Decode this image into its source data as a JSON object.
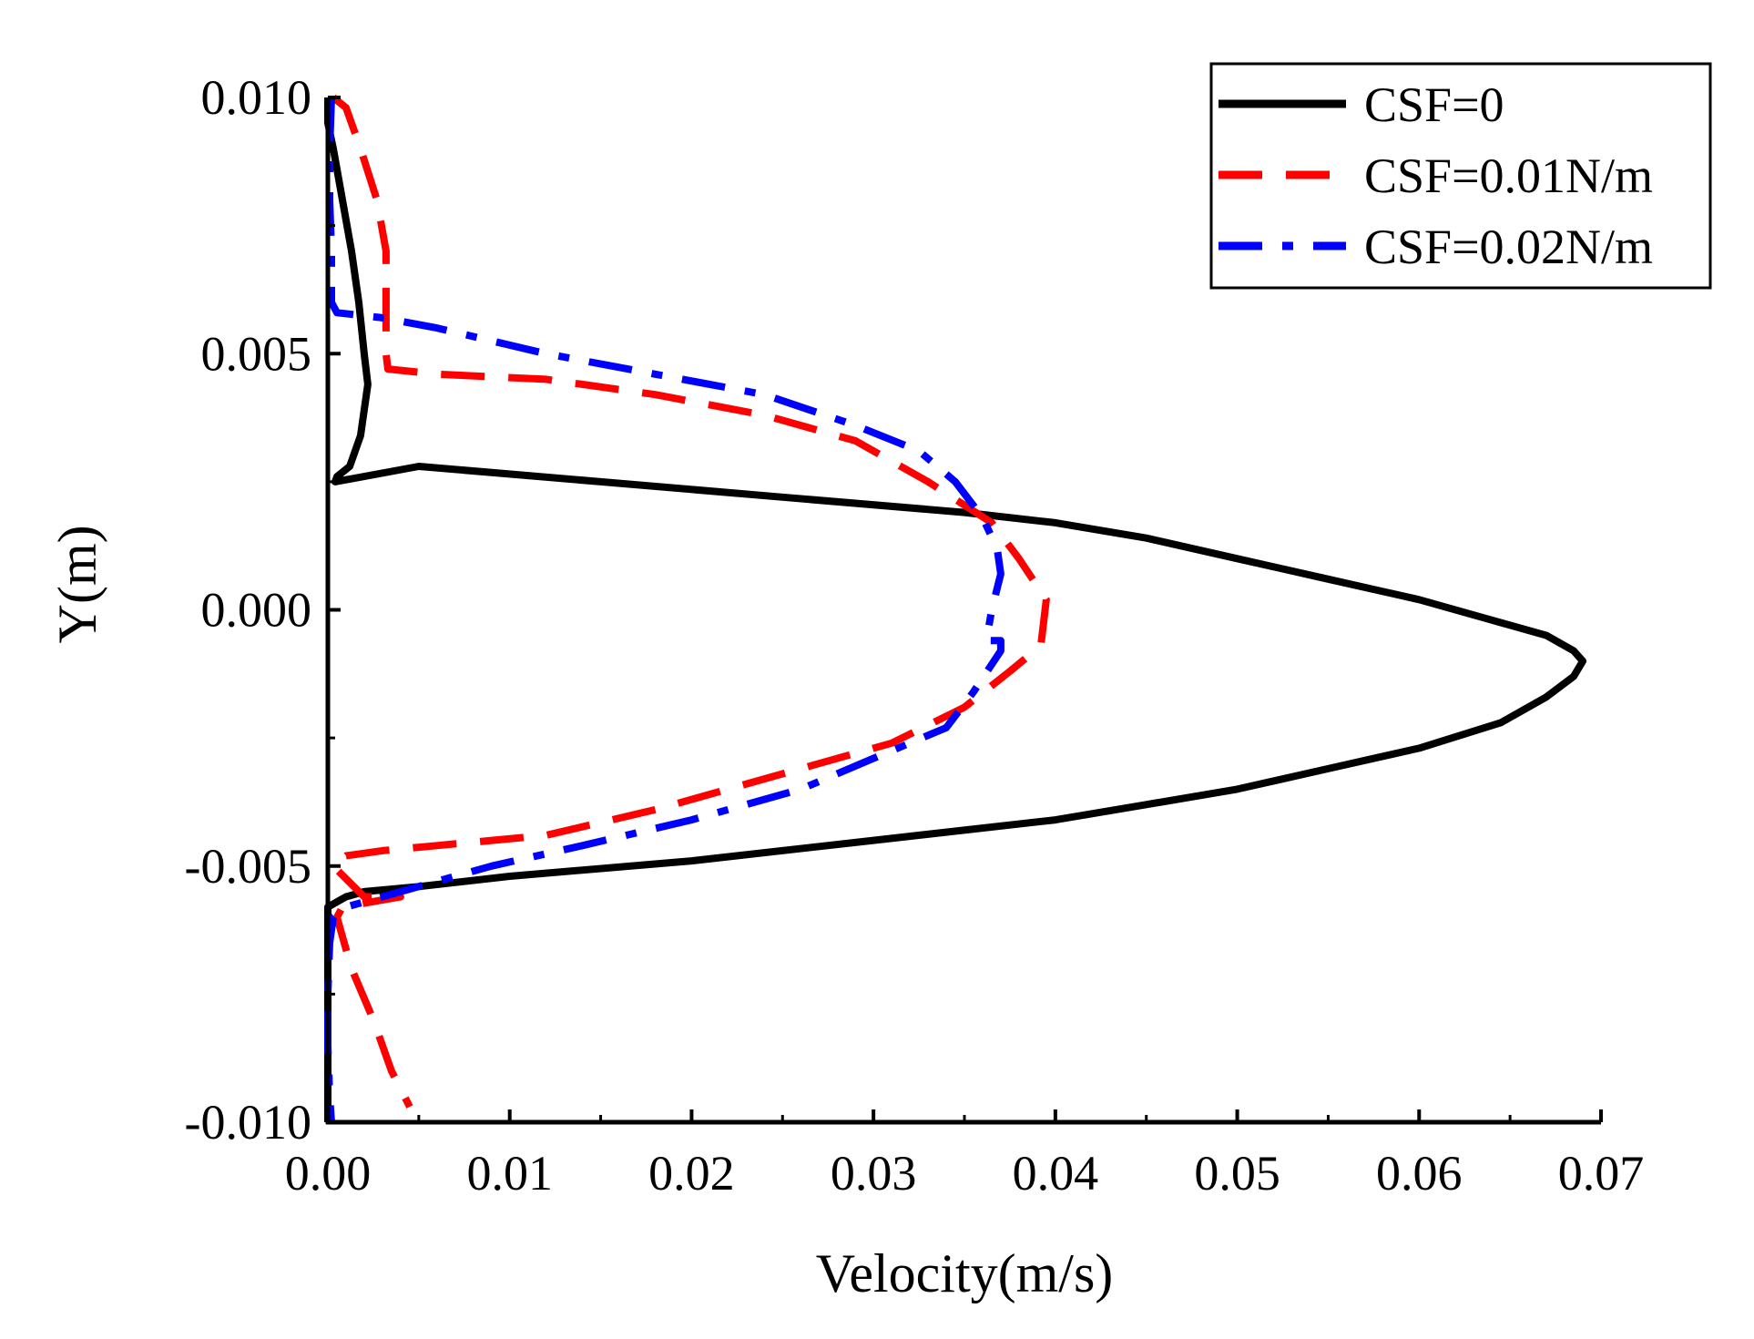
{
  "chart_data": {
    "type": "line",
    "xlabel": "Velocity(m/s)",
    "ylabel": "Y(m)",
    "xlim": [
      0,
      0.07
    ],
    "ylim": [
      -0.01,
      0.01
    ],
    "xticks": [
      "0.00",
      "0.01",
      "0.02",
      "0.03",
      "0.04",
      "0.05",
      "0.06",
      "0.07"
    ],
    "yticks": [
      "-0.010",
      "-0.005",
      "0.000",
      "0.005",
      "0.010"
    ],
    "legend_position": "top-right",
    "grid": false,
    "series": [
      {
        "name": "CSF=0",
        "color": "#000000",
        "style": "solid",
        "points": [
          [
            0.0,
            0.01
          ],
          [
            0.0,
            0.0095
          ],
          [
            0.0003,
            0.009
          ],
          [
            0.0008,
            0.008
          ],
          [
            0.0013,
            0.007
          ],
          [
            0.0017,
            0.006
          ],
          [
            0.002,
            0.005
          ],
          [
            0.0022,
            0.0044
          ],
          [
            0.0018,
            0.0034
          ],
          [
            0.0012,
            0.0028
          ],
          [
            0.0005,
            0.0026
          ],
          [
            0.0004,
            0.0025
          ],
          [
            0.005,
            0.0028
          ],
          [
            0.015,
            0.0025
          ],
          [
            0.025,
            0.0022
          ],
          [
            0.035,
            0.0019
          ],
          [
            0.04,
            0.0017
          ],
          [
            0.045,
            0.0014
          ],
          [
            0.05,
            0.001
          ],
          [
            0.055,
            0.0006
          ],
          [
            0.06,
            0.0002
          ],
          [
            0.064,
            -0.0002
          ],
          [
            0.067,
            -0.0005
          ],
          [
            0.0685,
            -0.0008
          ],
          [
            0.069,
            -0.001
          ],
          [
            0.0685,
            -0.0013
          ],
          [
            0.067,
            -0.0017
          ],
          [
            0.0645,
            -0.0022
          ],
          [
            0.06,
            -0.0027
          ],
          [
            0.055,
            -0.0031
          ],
          [
            0.05,
            -0.0035
          ],
          [
            0.045,
            -0.0038
          ],
          [
            0.04,
            -0.0041
          ],
          [
            0.03,
            -0.0045
          ],
          [
            0.02,
            -0.0049
          ],
          [
            0.01,
            -0.0052
          ],
          [
            0.005,
            -0.0054
          ],
          [
            0.002,
            -0.0055
          ],
          [
            0.001,
            -0.0056
          ],
          [
            0.0005,
            -0.0057
          ],
          [
            0.0,
            -0.0058
          ],
          [
            0.0,
            -0.0065
          ],
          [
            0.0,
            -0.0075
          ],
          [
            0.0,
            -0.0085
          ],
          [
            0.0,
            -0.0095
          ],
          [
            0.0,
            -0.01
          ]
        ]
      },
      {
        "name": "CSF=0.01N/m",
        "color": "#ff0000",
        "style": "dashed",
        "points": [
          [
            0.0003,
            0.01
          ],
          [
            0.001,
            0.0098
          ],
          [
            0.0018,
            0.009
          ],
          [
            0.0027,
            0.008
          ],
          [
            0.0032,
            0.007
          ],
          [
            0.0032,
            0.006
          ],
          [
            0.0032,
            0.005
          ],
          [
            0.0033,
            0.0047
          ],
          [
            0.006,
            0.0046
          ],
          [
            0.012,
            0.0045
          ],
          [
            0.018,
            0.0042
          ],
          [
            0.024,
            0.0038
          ],
          [
            0.029,
            0.0033
          ],
          [
            0.033,
            0.0025
          ],
          [
            0.0365,
            0.0017
          ],
          [
            0.038,
            0.001
          ],
          [
            0.0395,
            0.0002
          ],
          [
            0.0392,
            -0.0007
          ],
          [
            0.0375,
            -0.0012
          ],
          [
            0.035,
            -0.0019
          ],
          [
            0.031,
            -0.0026
          ],
          [
            0.025,
            -0.0032
          ],
          [
            0.018,
            -0.0039
          ],
          [
            0.012,
            -0.0044
          ],
          [
            0.006,
            -0.0046
          ],
          [
            0.003,
            -0.0047
          ],
          [
            0.001,
            -0.0048
          ],
          [
            0.0003,
            -0.005
          ],
          [
            0.002,
            -0.0056
          ],
          [
            0.004,
            -0.0056
          ],
          [
            0.0008,
            -0.0058
          ],
          [
            0.0005,
            -0.006
          ],
          [
            0.0013,
            -0.007
          ],
          [
            0.0025,
            -0.008
          ],
          [
            0.0035,
            -0.009
          ],
          [
            0.0045,
            -0.0097
          ]
        ]
      },
      {
        "name": "CSF=0.02N/m",
        "color": "#0000ff",
        "style": "dashdot",
        "points": [
          [
            0.0002,
            0.01
          ],
          [
            0.0001,
            0.009
          ],
          [
            0.0001,
            0.008
          ],
          [
            0.0002,
            0.007
          ],
          [
            0.0002,
            0.006
          ],
          [
            0.0005,
            0.0058
          ],
          [
            0.003,
            0.0057
          ],
          [
            0.006,
            0.0055
          ],
          [
            0.012,
            0.005
          ],
          [
            0.018,
            0.0046
          ],
          [
            0.024,
            0.0042
          ],
          [
            0.029,
            0.0036
          ],
          [
            0.0325,
            0.0031
          ],
          [
            0.0345,
            0.0025
          ],
          [
            0.036,
            0.0018
          ],
          [
            0.0368,
            0.0012
          ],
          [
            0.037,
            0.0007
          ],
          [
            0.0365,
            0.0
          ],
          [
            0.0362,
            -0.0006
          ],
          [
            0.037,
            -0.0006
          ],
          [
            0.037,
            -0.0008
          ],
          [
            0.0355,
            -0.0016
          ],
          [
            0.034,
            -0.0023
          ],
          [
            0.03,
            -0.0029
          ],
          [
            0.026,
            -0.0035
          ],
          [
            0.02,
            -0.0041
          ],
          [
            0.014,
            -0.0046
          ],
          [
            0.009,
            -0.005
          ],
          [
            0.006,
            -0.0053
          ],
          [
            0.003,
            -0.0056
          ],
          [
            0.001,
            -0.0058
          ],
          [
            0.0003,
            -0.006
          ],
          [
            0.0001,
            -0.0065
          ],
          [
            0.0,
            -0.0075
          ],
          [
            0.0,
            -0.0085
          ],
          [
            0.0001,
            -0.0095
          ],
          [
            0.0002,
            -0.01
          ]
        ]
      }
    ]
  }
}
